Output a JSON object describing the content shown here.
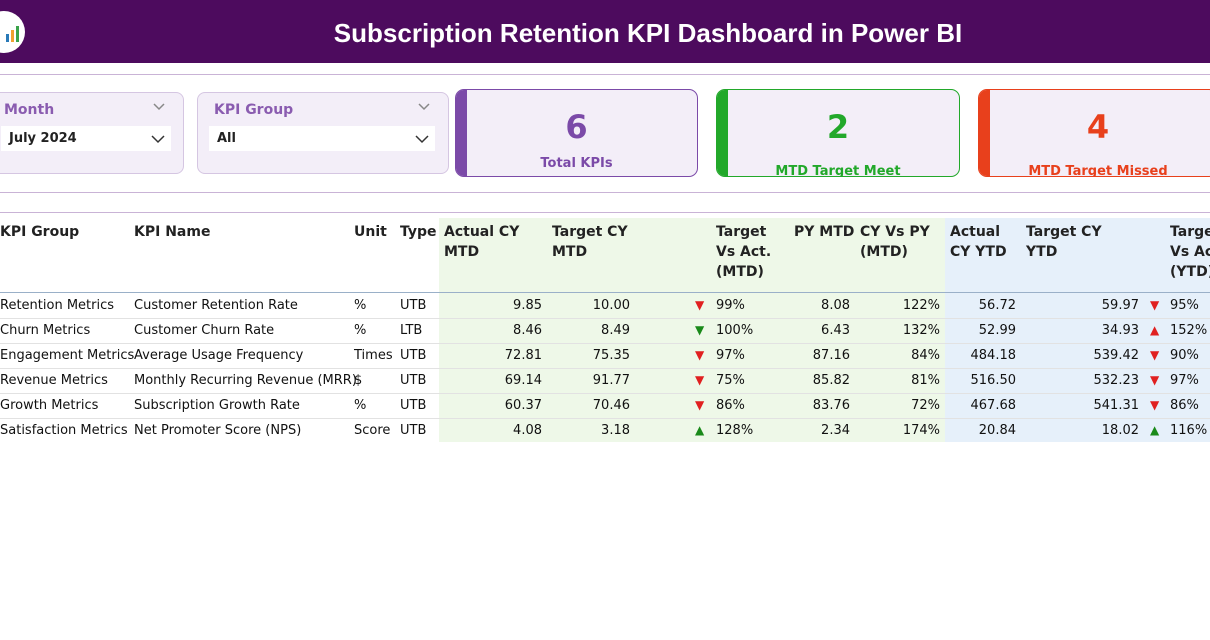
{
  "header": {
    "title": "Subscription Retention KPI Dashboard in Power BI"
  },
  "filters": [
    {
      "label": "Month",
      "value": "July 2024"
    },
    {
      "label": "KPI Group",
      "value": "All"
    }
  ],
  "cards": [
    {
      "value": 6,
      "label": "Total KPIs",
      "color": "#7b4aa8"
    },
    {
      "value": 2,
      "label": "MTD Target Meet",
      "color": "#22a82a"
    },
    {
      "value": 4,
      "label": "MTD Target Missed",
      "color": "#e8401c"
    }
  ],
  "table": {
    "columns": [
      "KPI Group",
      "KPI Name",
      "Unit",
      "Type",
      "Actual CY MTD",
      "Target CY MTD",
      "Target Vs Act. (MTD)",
      "PY MTD",
      "CY Vs PY (MTD)",
      "Actual CY YTD",
      "Target CY YTD",
      "Target Vs Act. (YTD)"
    ],
    "rows": [
      {
        "cells": [
          "Retention Metrics",
          "Customer Retention Rate",
          "%",
          "UTB",
          "9.85",
          "10.00",
          "99%",
          "8.08",
          "122%",
          "56.72",
          "59.97",
          "95%"
        ],
        "mtd_icon": {
          "symbol": "▼",
          "color": "#e02020"
        },
        "ytd_icon": {
          "symbol": "▼",
          "color": "#e02020"
        }
      },
      {
        "cells": [
          "Churn Metrics",
          "Customer Churn Rate",
          "%",
          "LTB",
          "8.46",
          "8.49",
          "100%",
          "6.43",
          "132%",
          "52.99",
          "34.93",
          "152%"
        ],
        "mtd_icon": {
          "symbol": "▼",
          "color": "#1a8a1a"
        },
        "ytd_icon": {
          "symbol": "▲",
          "color": "#e02020"
        }
      },
      {
        "cells": [
          "Engagement Metrics",
          "Average Usage Frequency",
          "Times",
          "UTB",
          "72.81",
          "75.35",
          "97%",
          "87.16",
          "84%",
          "484.18",
          "539.42",
          "90%"
        ],
        "mtd_icon": {
          "symbol": "▼",
          "color": "#e02020"
        },
        "ytd_icon": {
          "symbol": "▼",
          "color": "#e02020"
        }
      },
      {
        "cells": [
          "Revenue Metrics",
          "Monthly Recurring Revenue (MRR)",
          "$",
          "UTB",
          "69.14",
          "91.77",
          "75%",
          "85.82",
          "81%",
          "516.50",
          "532.23",
          "97%"
        ],
        "mtd_icon": {
          "symbol": "▼",
          "color": "#e02020"
        },
        "ytd_icon": {
          "symbol": "▼",
          "color": "#e02020"
        }
      },
      {
        "cells": [
          "Growth Metrics",
          "Subscription Growth Rate",
          "%",
          "UTB",
          "60.37",
          "70.46",
          "86%",
          "83.76",
          "72%",
          "467.68",
          "541.31",
          "86%"
        ],
        "mtd_icon": {
          "symbol": "▼",
          "color": "#e02020"
        },
        "ytd_icon": {
          "symbol": "▼",
          "color": "#e02020"
        }
      },
      {
        "cells": [
          "Satisfaction Metrics",
          "Net Promoter Score (NPS)",
          "Score",
          "UTB",
          "4.08",
          "3.18",
          "128%",
          "2.34",
          "174%",
          "20.84",
          "18.02",
          "116%"
        ],
        "mtd_icon": {
          "symbol": "▲",
          "color": "#1a8a1a"
        },
        "ytd_icon": {
          "symbol": "▲",
          "color": "#1a8a1a"
        }
      }
    ]
  }
}
